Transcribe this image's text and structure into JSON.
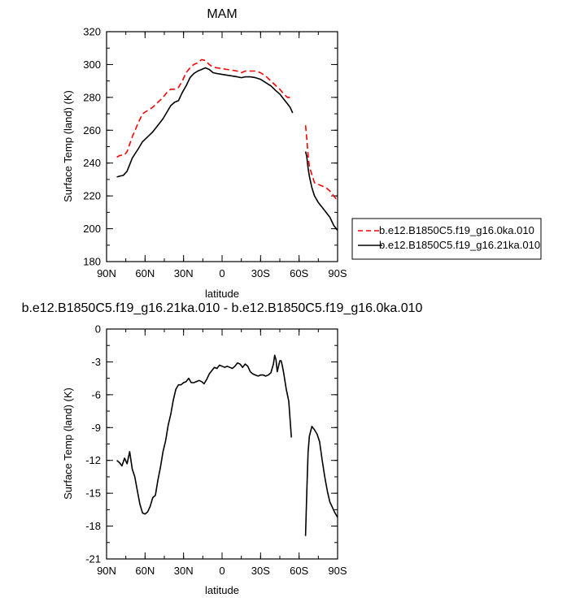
{
  "chart_data": [
    {
      "type": "line",
      "title": "MAM",
      "xlabel": "latitude",
      "ylabel": "Surface Temp (land) (K)",
      "xlim": [
        -90,
        90
      ],
      "ylim": [
        180,
        320
      ],
      "xticks": [
        -90,
        -60,
        -30,
        0,
        30,
        60,
        90
      ],
      "xtick_labels": [
        "90N",
        "60N",
        "30N",
        "0",
        "30S",
        "60S",
        "90S"
      ],
      "yticks": [
        180,
        200,
        220,
        240,
        260,
        280,
        300,
        320
      ],
      "ytick_labels": [
        "180",
        "200",
        "220",
        "240",
        "260",
        "280",
        "300",
        "320"
      ],
      "legend_position": "right",
      "series": [
        {
          "name": "b.e12.B1850C5.f19_g16.0ka.010",
          "color": "#ff0000",
          "dash": "dashed",
          "segments": [
            [
              [
                -82,
                243.5
              ],
              [
                -80,
                244.5
              ],
              [
                -76,
                245
              ],
              [
                -74,
                247
              ],
              [
                -70,
                256
              ],
              [
                -65,
                265
              ],
              [
                -62,
                270
              ],
              [
                -58,
                272
              ],
              [
                -54,
                274
              ],
              [
                -50,
                277
              ],
              [
                -46,
                280
              ],
              [
                -43,
                283
              ],
              [
                -40,
                285
              ],
              [
                -37,
                285
              ],
              [
                -34,
                286
              ],
              [
                -31,
                290
              ],
              [
                -28,
                295
              ],
              [
                -25,
                298
              ],
              [
                -22,
                300
              ],
              [
                -19,
                301
              ],
              [
                -16,
                303
              ],
              [
                -13,
                302.5
              ],
              [
                -10,
                300
              ],
              [
                -7,
                298.5
              ],
              [
                -4,
                298
              ],
              [
                0,
                297.5
              ],
              [
                4,
                297
              ],
              [
                8,
                296.5
              ],
              [
                12,
                296
              ],
              [
                15,
                295
              ],
              [
                18,
                296
              ],
              [
                22,
                296
              ],
              [
                26,
                296
              ],
              [
                30,
                295
              ],
              [
                34,
                293
              ],
              [
                38,
                290
              ],
              [
                42,
                287
              ],
              [
                45,
                285
              ],
              [
                48,
                282
              ],
              [
                51,
                280
              ],
              [
                53,
                280
              ],
              [
                55,
                279.5
              ]
            ],
            [
              [
                65,
                263
              ],
              [
                66,
                255
              ],
              [
                67,
                245
              ],
              [
                68,
                238
              ],
              [
                70,
                233
              ],
              [
                72,
                228
              ],
              [
                75,
                227
              ],
              [
                78,
                226
              ],
              [
                81,
                225
              ],
              [
                84,
                223
              ],
              [
                87,
                220
              ],
              [
                90,
                217
              ]
            ]
          ]
        },
        {
          "name": "b.e12.B1850C5.f19_g16.21ka.010",
          "color": "#000000",
          "dash": "solid",
          "segments": [
            [
              [
                -82,
                231.5
              ],
              [
                -80,
                232
              ],
              [
                -77,
                232.5
              ],
              [
                -74,
                235
              ],
              [
                -70,
                243
              ],
              [
                -65,
                249
              ],
              [
                -62,
                253
              ],
              [
                -58,
                256
              ],
              [
                -54,
                259
              ],
              [
                -50,
                263
              ],
              [
                -46,
                267
              ],
              [
                -43,
                271
              ],
              [
                -40,
                275
              ],
              [
                -37,
                277
              ],
              [
                -34,
                278
              ],
              [
                -31,
                283
              ],
              [
                -28,
                287
              ],
              [
                -25,
                292
              ],
              [
                -22,
                294.5
              ],
              [
                -19,
                296
              ],
              [
                -16,
                297
              ],
              [
                -13,
                298
              ],
              [
                -10,
                297
              ],
              [
                -7,
                295
              ],
              [
                -4,
                294.5
              ],
              [
                0,
                294
              ],
              [
                4,
                293.5
              ],
              [
                8,
                293
              ],
              [
                12,
                292.5
              ],
              [
                15,
                292
              ],
              [
                18,
                292.5
              ],
              [
                22,
                292.5
              ],
              [
                26,
                292
              ],
              [
                30,
                291
              ],
              [
                34,
                289
              ],
              [
                38,
                287
              ],
              [
                42,
                284
              ],
              [
                45,
                282
              ],
              [
                48,
                279
              ],
              [
                51,
                276
              ],
              [
                53,
                274
              ],
              [
                55,
                270.5
              ]
            ],
            [
              [
                65,
                247
              ],
              [
                66,
                244
              ],
              [
                67,
                237
              ],
              [
                68,
                232
              ],
              [
                70,
                225
              ],
              [
                72,
                220
              ],
              [
                75,
                216
              ],
              [
                78,
                213
              ],
              [
                81,
                210
              ],
              [
                84,
                207
              ],
              [
                87,
                202
              ],
              [
                90,
                199
              ]
            ]
          ]
        }
      ]
    },
    {
      "type": "line",
      "title": "b.e12.B1850C5.f19_g16.21ka.010 - b.e12.B1850C5.f19_g16.0ka.010",
      "xlabel": "latitude",
      "ylabel": "Surface Temp (land) (K)",
      "xlim": [
        -90,
        90
      ],
      "ylim": [
        -21,
        0
      ],
      "xticks": [
        -90,
        -60,
        -30,
        0,
        30,
        60,
        90
      ],
      "xtick_labels": [
        "90N",
        "60N",
        "30N",
        "0",
        "30S",
        "60S",
        "90S"
      ],
      "yticks": [
        -21,
        -18,
        -15,
        -12,
        -9,
        -6,
        -3,
        0
      ],
      "ytick_labels": [
        "-21",
        "-18",
        "-15",
        "-12",
        "-9",
        "-6",
        "-3",
        "0"
      ],
      "series": [
        {
          "color": "#000000",
          "dash": "solid",
          "segments": [
            [
              [
                -82,
                -12
              ],
              [
                -80,
                -12.2
              ],
              [
                -78,
                -12.5
              ],
              [
                -76,
                -11.8
              ],
              [
                -74,
                -12.3
              ],
              [
                -72,
                -11.2
              ],
              [
                -70,
                -12.8
              ],
              [
                -68,
                -13.5
              ],
              [
                -66,
                -14.8
              ],
              [
                -64,
                -16
              ],
              [
                -62,
                -16.8
              ],
              [
                -60,
                -16.9
              ],
              [
                -58,
                -16.7
              ],
              [
                -56,
                -16.2
              ],
              [
                -54,
                -15.4
              ],
              [
                -52,
                -15.2
              ],
              [
                -50,
                -13.8
              ],
              [
                -48,
                -12.6
              ],
              [
                -46,
                -11.2
              ],
              [
                -44,
                -10.2
              ],
              [
                -42,
                -8.8
              ],
              [
                -40,
                -7.8
              ],
              [
                -38,
                -6.5
              ],
              [
                -36,
                -5.5
              ],
              [
                -34,
                -5.1
              ],
              [
                -32,
                -5.1
              ],
              [
                -30,
                -4.9
              ],
              [
                -28,
                -4.8
              ],
              [
                -26,
                -4.5
              ],
              [
                -24,
                -4.9
              ],
              [
                -22,
                -4.9
              ],
              [
                -20,
                -4.8
              ],
              [
                -18,
                -4.7
              ],
              [
                -16,
                -4.8
              ],
              [
                -14,
                -5
              ],
              [
                -12,
                -4.6
              ],
              [
                -10,
                -4.1
              ],
              [
                -8,
                -3.8
              ],
              [
                -6,
                -3.5
              ],
              [
                -4,
                -3.6
              ],
              [
                -2,
                -3.3
              ],
              [
                0,
                -3.4
              ],
              [
                2,
                -3.5
              ],
              [
                4,
                -3.4
              ],
              [
                6,
                -3.5
              ],
              [
                8,
                -3.6
              ],
              [
                10,
                -3.4
              ],
              [
                12,
                -3.1
              ],
              [
                14,
                -3.2
              ],
              [
                16,
                -3.5
              ],
              [
                18,
                -3.2
              ],
              [
                20,
                -3.4
              ],
              [
                22,
                -3.9
              ],
              [
                24,
                -4.1
              ],
              [
                26,
                -4.2
              ],
              [
                28,
                -4.3
              ],
              [
                30,
                -4.2
              ],
              [
                32,
                -4.2
              ],
              [
                34,
                -4.3
              ],
              [
                36,
                -4.2
              ],
              [
                38,
                -4.0
              ],
              [
                40,
                -3.2
              ],
              [
                41,
                -2.4
              ],
              [
                42,
                -2.8
              ],
              [
                43,
                -3.9
              ],
              [
                44,
                -3.4
              ],
              [
                45,
                -2.9
              ],
              [
                46,
                -2.9
              ],
              [
                47,
                -3.4
              ],
              [
                48,
                -4.0
              ],
              [
                50,
                -5.5
              ],
              [
                52,
                -6.6
              ],
              [
                54,
                -9.9
              ]
            ],
            [
              [
                65,
                -18.9
              ],
              [
                66,
                -15
              ],
              [
                67,
                -11.3
              ],
              [
                68,
                -9.8
              ],
              [
                70,
                -8.9
              ],
              [
                72,
                -9.2
              ],
              [
                74,
                -9.6
              ],
              [
                76,
                -10.3
              ],
              [
                78,
                -12
              ],
              [
                80,
                -13.5
              ],
              [
                82,
                -14.8
              ],
              [
                84,
                -15.8
              ],
              [
                86,
                -16.3
              ],
              [
                88,
                -16.8
              ],
              [
                90,
                -17.2
              ]
            ]
          ]
        }
      ]
    }
  ]
}
